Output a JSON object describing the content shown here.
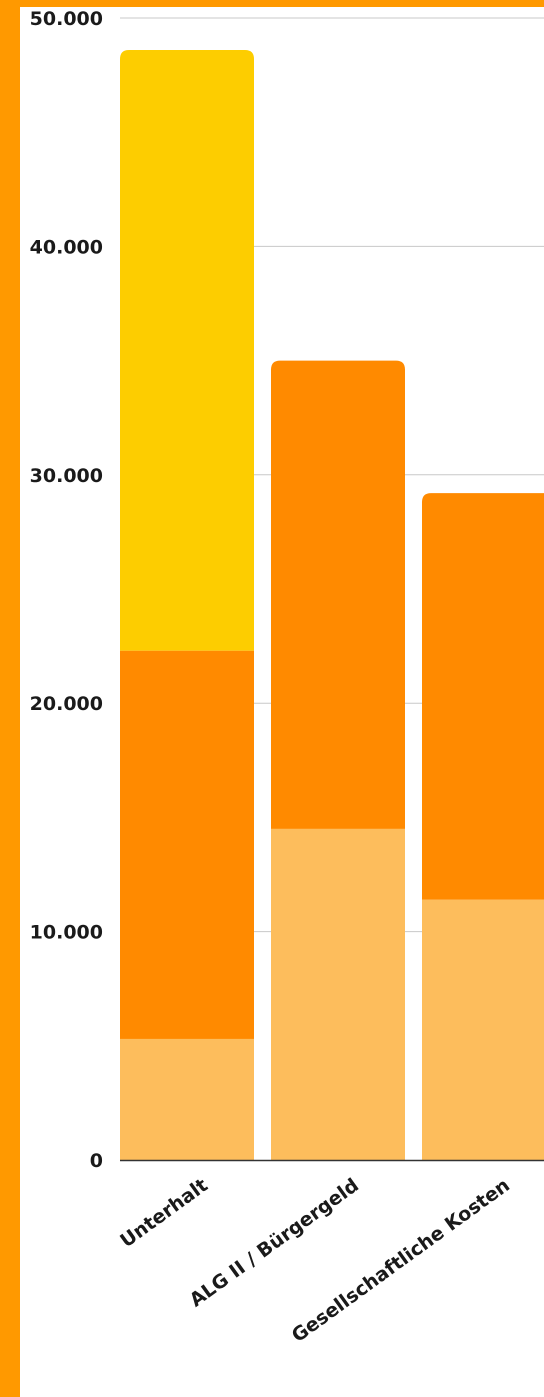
{
  "frame": {
    "accent_color": "#FF9900"
  },
  "chart_data": {
    "type": "bar",
    "stacked": true,
    "categories": [
      "Unterhalt",
      "ALG II / Bürgergeld",
      "Gesellschaftliche Kosten"
    ],
    "series": [
      {
        "color": "#FDBD5C",
        "values": [
          5300,
          14500,
          11400
        ]
      },
      {
        "color": "#FF8A00",
        "values": [
          17000,
          20500,
          17800
        ]
      },
      {
        "color": "#FDCD00",
        "values": [
          26300,
          0,
          0
        ]
      }
    ],
    "yticks": [
      {
        "value": 0,
        "label": "0"
      },
      {
        "value": 10000,
        "label": "10.000"
      },
      {
        "value": 20000,
        "label": "20.000"
      },
      {
        "value": 30000,
        "label": "30.000"
      },
      {
        "value": 40000,
        "label": "40.000"
      },
      {
        "value": 50000,
        "label": "50.000"
      }
    ],
    "ylim": [
      0,
      50000
    ],
    "grid": true,
    "legend": "none",
    "gridline_color": "#C8C8C8"
  }
}
